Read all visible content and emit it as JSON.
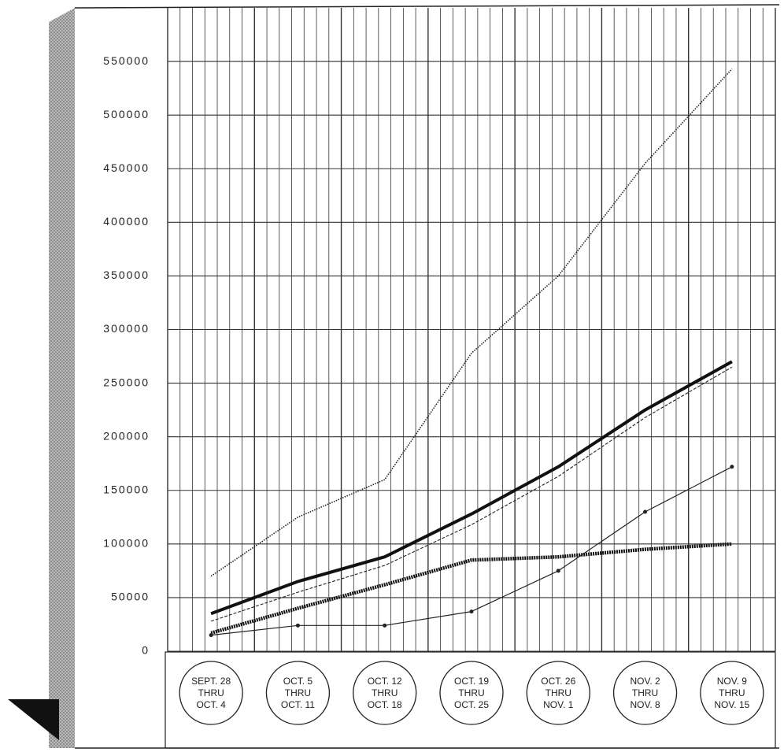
{
  "chart_data": {
    "type": "line",
    "categories": [
      "SEPT. 28\nTHRU\nOCT. 4",
      "OCT. 5\nTHRU\nOCT. 11",
      "OCT. 12\nTHRU\nOCT. 18",
      "OCT. 19\nTHRU\nOCT. 25",
      "OCT. 26\nTHRU\nNOV. 1",
      "NOV. 2\nTHRU\nNOV. 8",
      "NOV. 9\nTHRU\nNOV. 15"
    ],
    "series": [
      {
        "color": "#222222",
        "style": "dotted",
        "values": [
          70000,
          125000,
          160000,
          278000,
          350000,
          455000,
          543000
        ]
      },
      {
        "color": "#111111",
        "style": "bold",
        "values": [
          35000,
          65000,
          88000,
          128000,
          172000,
          225000,
          270000
        ]
      },
      {
        "color": "#222222",
        "style": "dashed",
        "values": [
          28000,
          55000,
          80000,
          118000,
          163000,
          218000,
          265000
        ]
      },
      {
        "color": "#111111",
        "style": "bold-dotted",
        "values": [
          17000,
          40000,
          62000,
          85000,
          88000,
          95000,
          100000
        ]
      },
      {
        "color": "#222222",
        "style": "dot-marker",
        "values": [
          15000,
          24000,
          24000,
          37000,
          75000,
          130000,
          172000
        ]
      }
    ],
    "ylim": [
      0,
      600000
    ],
    "yticks": [
      0,
      50000,
      100000,
      150000,
      200000,
      250000,
      300000,
      350000,
      400000,
      450000,
      500000,
      550000
    ],
    "grid": true
  }
}
